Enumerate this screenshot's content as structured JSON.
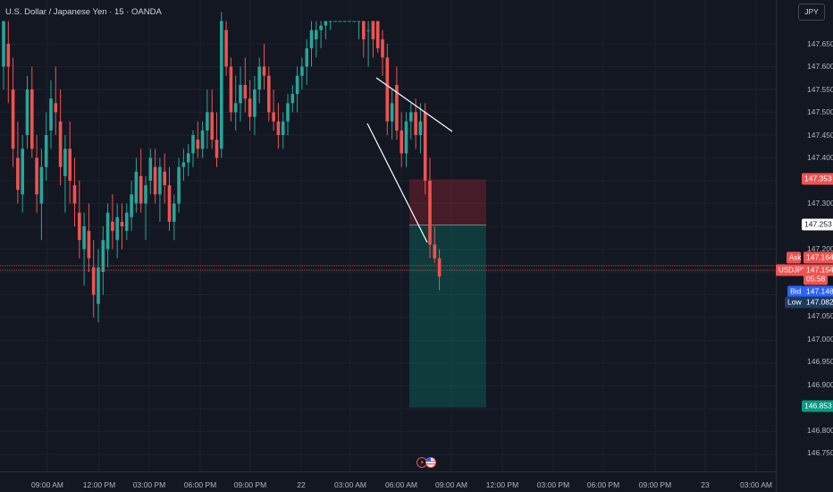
{
  "header": {
    "symbol_title": "U.S. Dollar / Japanese Yen · 15 · OANDA"
  },
  "price_scale": {
    "currency_button": "JPY",
    "ticks": [
      "147.650",
      "147.600",
      "147.550",
      "147.500",
      "147.450",
      "147.400",
      "147.300",
      "147.200",
      "147.050",
      "147.000",
      "146.950",
      "146.900",
      "146.800",
      "146.750"
    ]
  },
  "time_axis": {
    "labels": [
      "09:00 AM",
      "12:00 PM",
      "03:00 PM",
      "06:00 PM",
      "09:00 PM",
      "22",
      "03:00 AM",
      "06:00 AM",
      "09:00 AM",
      "12:00 PM",
      "03:00 PM",
      "06:00 PM",
      "09:00 PM",
      "23",
      "03:00 AM"
    ]
  },
  "price_tags": {
    "stop_loss": "147.353",
    "entry": "147.253",
    "ask_label": "Ask",
    "ask_value": "147.164",
    "symbol_label": "USDJPY",
    "last_value": "147.154",
    "countdown": "05:58",
    "bid_label": "Bid",
    "bid_value": "147.148",
    "low_label": "Low",
    "low_value": "147.082",
    "target": "146.853"
  },
  "colors": {
    "background": "#131722",
    "up": "#26a69a",
    "down": "#ef5350",
    "stop_zone": "rgba(178,40,51,0.32)",
    "target_zone": "rgba(8,153,129,0.28)",
    "trendline": "#ffffff",
    "bid_tag": "#2962ff"
  },
  "icons": {
    "events": "flash-flag-icon"
  },
  "chart_data": {
    "type": "candlestick",
    "title": "U.S. Dollar / Japanese Yen · 15 · OANDA",
    "interval_minutes": 15,
    "y_range": [
      146.72,
      147.7
    ],
    "trendlines": [
      {
        "from": [
          "06:30 AM",
          147.57
        ],
        "to": [
          "09:00 AM",
          147.46
        ]
      },
      {
        "from": [
          "03:45 AM",
          147.48
        ],
        "to": [
          "07:00 AM",
          147.21
        ]
      }
    ],
    "position": {
      "side": "short",
      "entry": 147.253,
      "stop": 147.353,
      "target": 146.853,
      "from": "06:00 AM",
      "to": "09:45 AM"
    },
    "ohlc": [
      [
        147.6,
        147.7,
        147.55,
        147.7
      ],
      [
        147.65,
        147.7,
        147.52,
        147.6
      ],
      [
        147.55,
        147.62,
        147.38,
        147.42
      ],
      [
        147.4,
        147.48,
        147.3,
        147.33
      ],
      [
        147.32,
        147.45,
        147.28,
        147.42
      ],
      [
        147.45,
        147.58,
        147.42,
        147.55
      ],
      [
        147.55,
        147.6,
        147.4,
        147.42
      ],
      [
        147.4,
        147.45,
        147.28,
        147.32
      ],
      [
        147.3,
        147.42,
        147.22,
        147.38
      ],
      [
        147.38,
        147.5,
        147.35,
        147.45
      ],
      [
        147.46,
        147.57,
        147.42,
        147.53
      ],
      [
        147.52,
        147.6,
        147.45,
        147.5
      ],
      [
        147.48,
        147.55,
        147.34,
        147.38
      ],
      [
        147.36,
        147.45,
        147.28,
        147.42
      ],
      [
        147.42,
        147.48,
        147.3,
        147.35
      ],
      [
        147.34,
        147.4,
        147.25,
        147.3
      ],
      [
        147.28,
        147.35,
        147.18,
        147.22
      ],
      [
        147.2,
        147.28,
        147.12,
        147.25
      ],
      [
        147.24,
        147.3,
        147.15,
        147.18
      ],
      [
        147.16,
        147.22,
        147.05,
        147.1
      ],
      [
        147.08,
        147.2,
        147.04,
        147.16
      ],
      [
        147.15,
        147.25,
        147.1,
        147.22
      ],
      [
        147.2,
        147.3,
        147.16,
        147.28
      ],
      [
        147.26,
        147.32,
        147.2,
        147.24
      ],
      [
        147.22,
        147.3,
        147.18,
        147.27
      ],
      [
        147.26,
        147.3,
        147.2,
        147.25
      ],
      [
        147.24,
        147.3,
        147.22,
        147.28
      ],
      [
        147.27,
        147.35,
        147.24,
        147.32
      ],
      [
        147.3,
        147.4,
        147.28,
        147.37
      ],
      [
        147.36,
        147.42,
        147.28,
        147.3
      ],
      [
        147.3,
        147.36,
        147.22,
        147.34
      ],
      [
        147.35,
        147.42,
        147.32,
        147.4
      ],
      [
        147.38,
        147.42,
        147.3,
        147.32
      ],
      [
        147.32,
        147.4,
        147.26,
        147.38
      ],
      [
        147.37,
        147.41,
        147.3,
        147.34
      ],
      [
        147.34,
        147.38,
        147.24,
        147.26
      ],
      [
        147.26,
        147.32,
        147.22,
        147.3
      ],
      [
        147.3,
        147.4,
        147.28,
        147.38
      ],
      [
        147.38,
        147.42,
        147.35,
        147.39
      ],
      [
        147.39,
        147.43,
        147.36,
        147.41
      ],
      [
        147.41,
        147.46,
        147.38,
        147.45
      ],
      [
        147.44,
        147.48,
        147.4,
        147.42
      ],
      [
        147.42,
        147.48,
        147.4,
        147.46
      ],
      [
        147.46,
        147.55,
        147.42,
        147.5
      ],
      [
        147.5,
        147.55,
        147.42,
        147.44
      ],
      [
        147.44,
        147.5,
        147.38,
        147.4
      ],
      [
        147.42,
        147.72,
        147.4,
        147.7
      ],
      [
        147.68,
        147.7,
        147.58,
        147.6
      ],
      [
        147.6,
        147.62,
        147.48,
        147.5
      ],
      [
        147.5,
        147.58,
        147.46,
        147.52
      ],
      [
        147.52,
        147.6,
        147.48,
        147.56
      ],
      [
        147.56,
        147.62,
        147.5,
        147.53
      ],
      [
        147.53,
        147.57,
        147.46,
        147.49
      ],
      [
        147.49,
        147.58,
        147.45,
        147.55
      ],
      [
        147.55,
        147.62,
        147.52,
        147.6
      ],
      [
        147.6,
        147.65,
        147.55,
        147.58
      ],
      [
        147.58,
        147.6,
        147.48,
        147.5
      ],
      [
        147.5,
        147.55,
        147.46,
        147.48
      ],
      [
        147.48,
        147.52,
        147.42,
        147.45
      ],
      [
        147.45,
        147.5,
        147.42,
        147.48
      ],
      [
        147.48,
        147.54,
        147.45,
        147.52
      ],
      [
        147.52,
        147.56,
        147.5,
        147.54
      ],
      [
        147.54,
        147.6,
        147.5,
        147.58
      ],
      [
        147.58,
        147.62,
        147.55,
        147.6
      ],
      [
        147.6,
        147.66,
        147.56,
        147.64
      ],
      [
        147.64,
        147.7,
        147.6,
        147.68
      ],
      [
        147.66,
        147.7,
        147.62,
        147.68
      ],
      [
        147.68,
        147.7,
        147.64,
        147.69
      ],
      [
        147.69,
        147.7,
        147.66,
        147.7
      ],
      [
        147.7,
        147.7,
        147.68,
        147.7
      ],
      [
        147.7,
        147.7,
        147.7,
        147.7
      ],
      [
        147.7,
        147.7,
        147.7,
        147.7
      ],
      [
        147.7,
        147.7,
        147.7,
        147.7
      ],
      [
        147.7,
        147.7,
        147.7,
        147.7
      ],
      [
        147.7,
        147.7,
        147.7,
        147.7
      ],
      [
        147.7,
        147.7,
        147.66,
        147.7
      ],
      [
        147.7,
        147.7,
        147.62,
        147.66
      ],
      [
        147.68,
        147.7,
        147.6,
        147.68
      ],
      [
        147.7,
        147.7,
        147.62,
        147.66
      ],
      [
        147.7,
        147.7,
        147.63,
        147.64
      ],
      [
        147.66,
        147.68,
        147.58,
        147.62
      ],
      [
        147.62,
        147.65,
        147.45,
        147.48
      ],
      [
        147.48,
        147.55,
        147.44,
        147.52
      ],
      [
        147.56,
        147.6,
        147.44,
        147.46
      ],
      [
        147.46,
        147.5,
        147.38,
        147.41
      ],
      [
        147.41,
        147.5,
        147.38,
        147.48
      ],
      [
        147.48,
        147.52,
        147.44,
        147.5
      ],
      [
        147.5,
        147.53,
        147.42,
        147.45
      ],
      [
        147.45,
        147.52,
        147.41,
        147.48
      ],
      [
        147.5,
        147.52,
        147.32,
        147.35
      ],
      [
        147.35,
        147.4,
        147.18,
        147.21
      ],
      [
        147.21,
        147.25,
        147.17,
        147.18
      ],
      [
        147.18,
        147.2,
        147.11,
        147.14
      ]
    ]
  }
}
